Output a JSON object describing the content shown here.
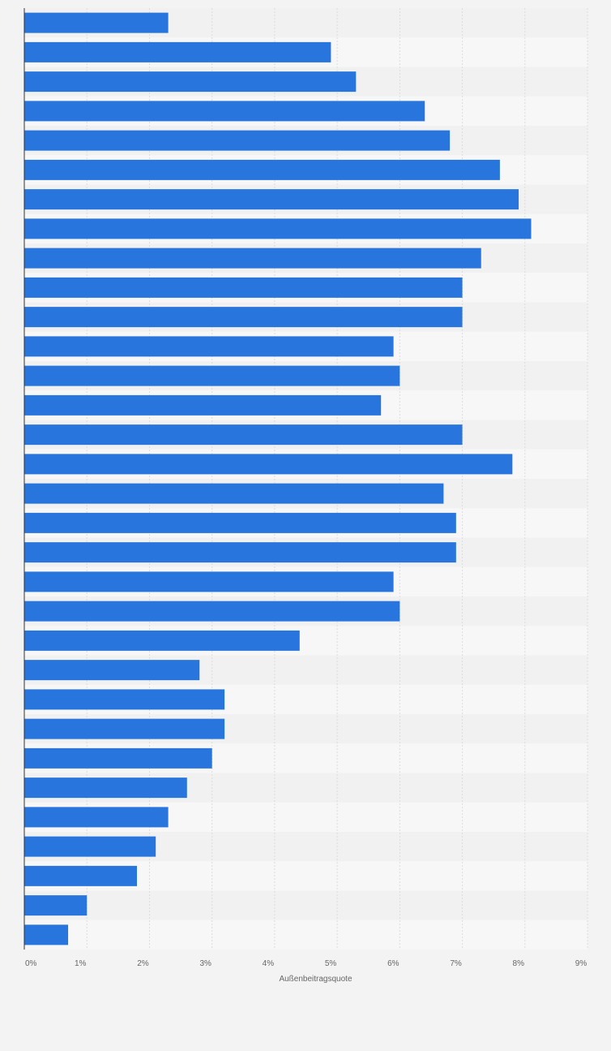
{
  "chart_data": {
    "type": "bar",
    "orientation": "horizontal",
    "xlabel": "Außenbeitragsquote",
    "xlim": [
      0,
      9
    ],
    "grid": true,
    "x_ticks": [
      "0%",
      "1%",
      "2%",
      "3%",
      "4%",
      "5%",
      "6%",
      "7%",
      "8%",
      "9%"
    ],
    "values": [
      2.3,
      4.9,
      5.3,
      6.4,
      6.8,
      7.6,
      7.9,
      8.1,
      7.3,
      7.0,
      7.0,
      5.9,
      6.0,
      5.7,
      7.0,
      7.8,
      6.7,
      6.9,
      6.9,
      5.9,
      6.0,
      4.4,
      2.8,
      3.2,
      3.2,
      3.0,
      2.6,
      2.3,
      2.1,
      1.8,
      1.0,
      0.7
    ],
    "colors": {
      "bar": "#2876dd",
      "band_dark": "#f1f1f1",
      "band_light": "#f7f7f7",
      "grid": "#dcdcdc",
      "axis": "#333333",
      "tick_text": "#666666",
      "background": "#f3f3f3"
    }
  }
}
